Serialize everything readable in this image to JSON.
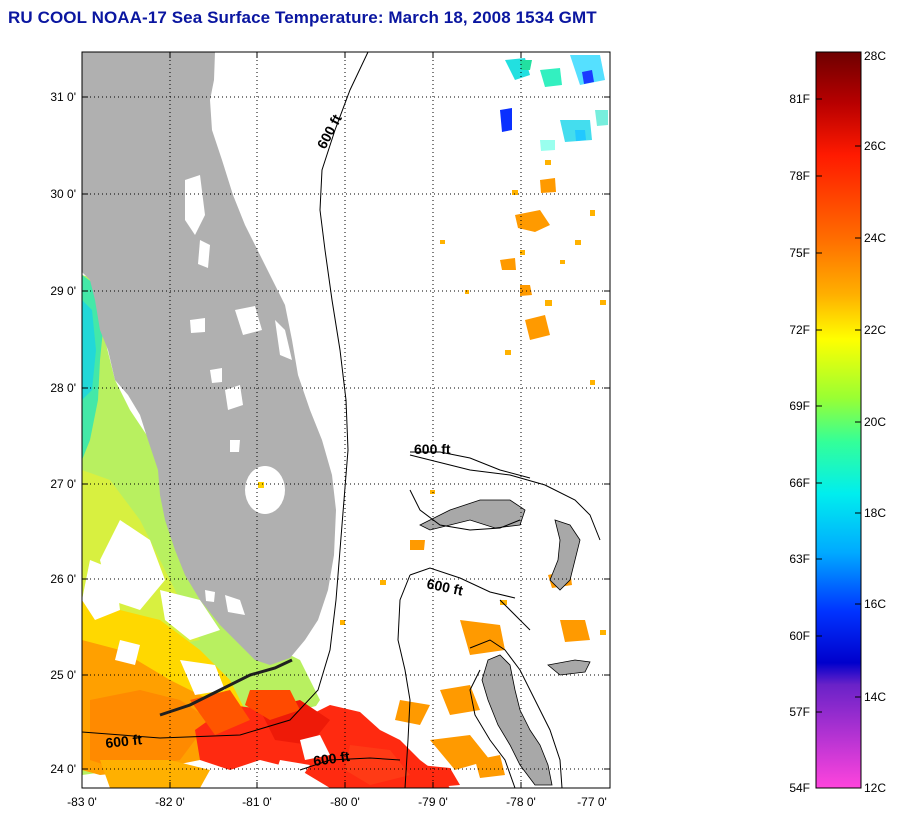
{
  "title": "RU COOL  NOAA-17  Sea Surface Temperature:  March 18, 2008 1534 GMT",
  "map": {
    "latitude_labels": [
      "31 0'",
      "30 0'",
      "29 0'",
      "28 0'",
      "27 0'",
      "26 0'",
      "25 0'",
      "24 0'"
    ],
    "longitude_labels": [
      "-83 0'",
      "-82 0'",
      "-81 0'",
      "-80 0'",
      "-79 0'",
      "-78 0'",
      "-77 0'"
    ],
    "contour_labels": [
      "600 ft",
      "600 ft",
      "600 ft",
      "600 ft",
      "600 ft"
    ]
  },
  "colorbar": {
    "celsius_labels": [
      "28C",
      "26C",
      "24C",
      "22C",
      "20C",
      "18C",
      "16C",
      "14C",
      "12C"
    ],
    "fahrenheit_labels": [
      "81F",
      "78F",
      "75F",
      "72F",
      "69F",
      "66F",
      "63F",
      "60F",
      "57F",
      "54F"
    ],
    "colors": [
      "#7a0000",
      "#d40000",
      "#ff2200",
      "#ff7700",
      "#ffb300",
      "#ffff00",
      "#99ff33",
      "#33ff99",
      "#00e5e5",
      "#0099ff",
      "#0000ff",
      "#0000cc",
      "#8833cc",
      "#ff33dd"
    ]
  }
}
